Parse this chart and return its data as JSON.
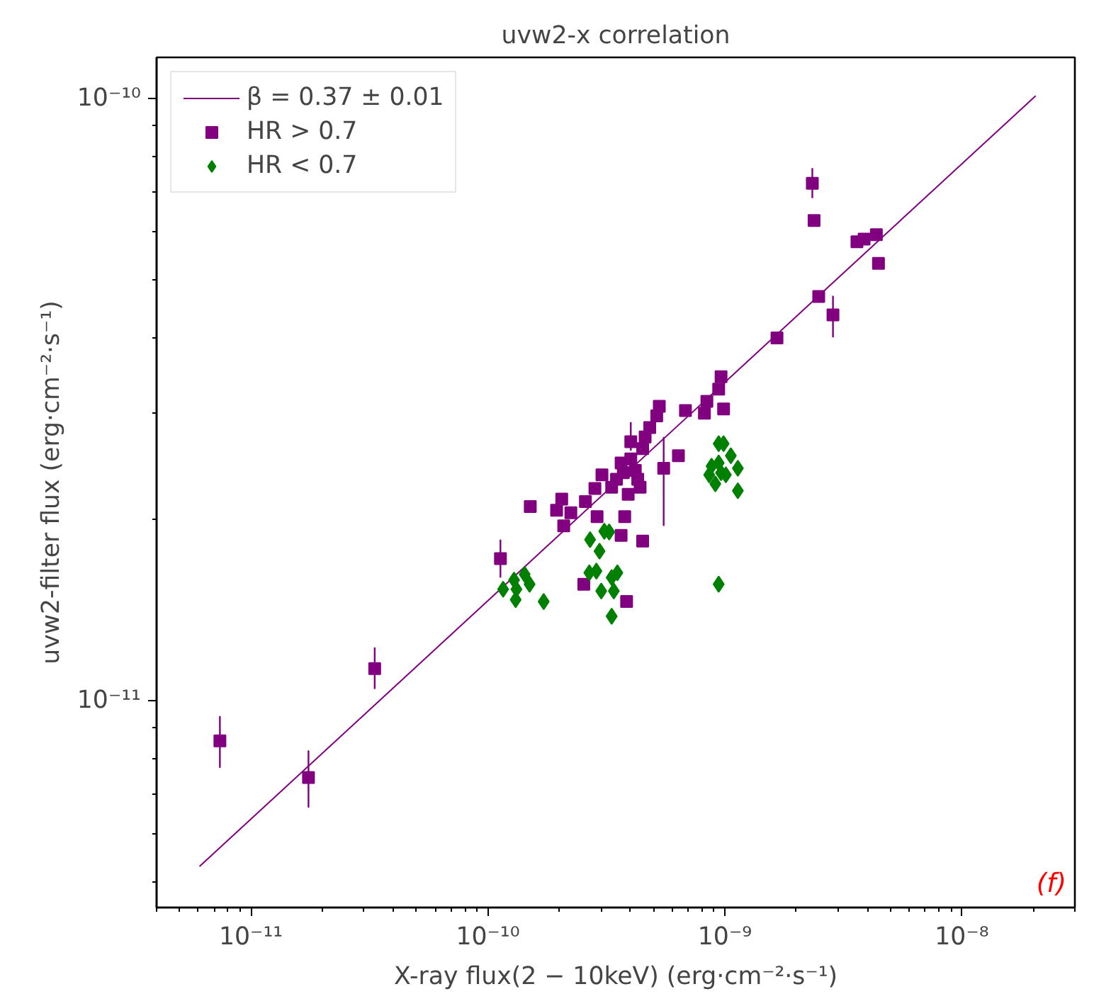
{
  "chart_data": {
    "type": "scatter",
    "title": "uvw2-x correlation",
    "xlabel": "X-ray flux(2 − 10keV) (erg·cm⁻²·s⁻¹)",
    "ylabel": "uvw2-filter flux (erg·cm⁻²·s⁻¹)",
    "log": "xy",
    "grid": false,
    "legend": "top left",
    "xlim": [
      4e-12,
      3e-08
    ],
    "ylim": [
      4.53e-12,
      1.17e-10
    ],
    "xticks": [
      {
        "value": 4e-12,
        "label": null
      },
      {
        "value": 5e-12,
        "label": null
      },
      {
        "value": 6e-12,
        "label": null
      },
      {
        "value": 7e-12,
        "label": null
      },
      {
        "value": 8e-12,
        "label": null
      },
      {
        "value": 9e-12,
        "label": null
      },
      {
        "value": 1e-11,
        "label": "10⁻¹¹"
      },
      {
        "value": 2e-11,
        "label": null
      },
      {
        "value": 3e-11,
        "label": null
      },
      {
        "value": 4e-11,
        "label": null
      },
      {
        "value": 5e-11,
        "label": null
      },
      {
        "value": 6e-11,
        "label": null
      },
      {
        "value": 7e-11,
        "label": null
      },
      {
        "value": 8e-11,
        "label": null
      },
      {
        "value": 9e-11,
        "label": null
      },
      {
        "value": 1e-10,
        "label": "10⁻¹⁰"
      },
      {
        "value": 2e-10,
        "label": null
      },
      {
        "value": 3e-10,
        "label": null
      },
      {
        "value": 4e-10,
        "label": null
      },
      {
        "value": 5e-10,
        "label": null
      },
      {
        "value": 6e-10,
        "label": null
      },
      {
        "value": 7e-10,
        "label": null
      },
      {
        "value": 8e-10,
        "label": null
      },
      {
        "value": 9e-10,
        "label": null
      },
      {
        "value": 1e-09,
        "label": "10⁻⁹"
      },
      {
        "value": 2e-09,
        "label": null
      },
      {
        "value": 3e-09,
        "label": null
      },
      {
        "value": 4e-09,
        "label": null
      },
      {
        "value": 5e-09,
        "label": null
      },
      {
        "value": 6e-09,
        "label": null
      },
      {
        "value": 7e-09,
        "label": null
      },
      {
        "value": 8e-09,
        "label": null
      },
      {
        "value": 9e-09,
        "label": null
      },
      {
        "value": 1e-08,
        "label": "10⁻⁸"
      },
      {
        "value": 2e-08,
        "label": null
      },
      {
        "value": 3e-08,
        "label": null
      }
    ],
    "yticks": [
      {
        "value": 5e-12,
        "label": null
      },
      {
        "value": 6e-12,
        "label": null
      },
      {
        "value": 7e-12,
        "label": null
      },
      {
        "value": 8e-12,
        "label": null
      },
      {
        "value": 9e-12,
        "label": null
      },
      {
        "value": 1e-11,
        "label": "10⁻¹¹"
      },
      {
        "value": 2e-11,
        "label": null
      },
      {
        "value": 3e-11,
        "label": null
      },
      {
        "value": 4e-11,
        "label": null
      },
      {
        "value": 5e-11,
        "label": null
      },
      {
        "value": 6e-11,
        "label": null
      },
      {
        "value": 7e-11,
        "label": null
      },
      {
        "value": 8e-11,
        "label": null
      },
      {
        "value": 9e-11,
        "label": null
      },
      {
        "value": 1e-10,
        "label": "10⁻¹⁰"
      }
    ],
    "annotations": [
      "(f)"
    ],
    "series": [
      {
        "name": "β = 0.37 ± 0.01",
        "type": "line",
        "color": "#800080",
        "marker": "none",
        "x": [
          6.07e-12,
          2.05e-08
        ],
        "values": [
          5.3e-12,
          1.01e-10
        ]
      },
      {
        "name": "HR > 0.7",
        "color": "#800080",
        "marker": "square",
        "x": [
          7.4e-12,
          1.75e-11,
          3.33e-11,
          2.34e-09,
          2.38e-09,
          1.66e-09,
          2.49e-09,
          2.86e-09,
          3.61e-09,
          3.87e-09,
          4.36e-09,
          4.45e-09,
          9.64e-10,
          9.42e-10,
          8.4e-10,
          8.2e-10,
          9.88e-10,
          6.82e-10,
          5.29e-10,
          5.16e-10,
          4.82e-10,
          4.61e-10,
          4.01e-10,
          4.5e-10,
          6.37e-10,
          4.01e-10,
          3.65e-10,
          5.52e-10,
          3.73e-10,
          4.19e-10,
          3.03e-10,
          4.29e-10,
          3.49e-10,
          2.83e-10,
          3.33e-10,
          4.39e-10,
          3.91e-10,
          2.58e-10,
          2.05e-10,
          1.95e-10,
          2.24e-10,
          2.89e-10,
          1.51e-10,
          2.09e-10,
          3.78e-10,
          3.65e-10,
          4.5e-10,
          1.13e-10,
          2.54e-10,
          3.85e-10
        ],
        "values": [
          8.57e-12,
          7.45e-12,
          1.13e-11,
          7.23e-11,
          6.27e-11,
          4e-11,
          4.69e-11,
          4.37e-11,
          5.78e-11,
          5.84e-11,
          5.94e-11,
          5.32e-11,
          3.45e-11,
          3.29e-11,
          3.14e-11,
          3e-11,
          3.05e-11,
          3.03e-11,
          3.08e-11,
          2.97e-11,
          2.84e-11,
          2.74e-11,
          2.69e-11,
          2.62e-11,
          2.55e-11,
          2.52e-11,
          2.48e-11,
          2.43e-11,
          2.39e-11,
          2.41e-11,
          2.37e-11,
          2.33e-11,
          2.33e-11,
          2.25e-11,
          2.26e-11,
          2.26e-11,
          2.2e-11,
          2.14e-11,
          2.16e-11,
          2.07e-11,
          2.05e-11,
          2.02e-11,
          2.1e-11,
          1.95e-11,
          2.02e-11,
          1.88e-11,
          1.84e-11,
          1.72e-11,
          1.56e-11,
          1.46e-11
        ],
        "errors": [
          [
            7.73e-12,
            9.42e-12
          ],
          [
            6.64e-12,
            8.26e-12
          ],
          [
            1.045e-11,
            1.225e-11
          ],
          [
            6.83e-11,
            7.66e-11
          ],
          null,
          null,
          null,
          [
            4.01e-11,
            4.7e-11
          ],
          null,
          null,
          null,
          null,
          null,
          null,
          null,
          null,
          null,
          null,
          null,
          null,
          null,
          null,
          [
            2.6e-11,
            2.9e-11
          ],
          null,
          null,
          null,
          null,
          [
            1.95e-11,
            2.74e-11
          ],
          null,
          null,
          null,
          null,
          null,
          null,
          null,
          null,
          null,
          null,
          null,
          null,
          null,
          null,
          null,
          null,
          null,
          null,
          null,
          [
            1.6e-11,
            1.85e-11
          ],
          null,
          null
        ]
      },
      {
        "name": "HR < 0.7",
        "color": "#008000",
        "marker": "diamond",
        "x": [
          1.16e-10,
          1.29e-10,
          1.32e-10,
          1.31e-10,
          1.43e-10,
          1.5e-10,
          1.72e-10,
          2.7e-10,
          3.1e-10,
          3.25e-10,
          2.96e-10,
          2.68e-10,
          2.87e-10,
          3.01e-10,
          3.33e-10,
          3.52e-10,
          3.4e-10,
          3.33e-10,
          9.42e-10,
          9.88e-10,
          1.06e-09,
          8.79e-10,
          9.42e-10,
          1.135e-09,
          8.59e-10,
          1.01e-09,
          9.64e-10,
          9.12e-10,
          1.135e-09,
          9.42e-10
        ],
        "values": [
          1.53e-11,
          1.585e-11,
          1.53e-11,
          1.47e-11,
          1.62e-11,
          1.56e-11,
          1.46e-11,
          1.85e-11,
          1.91e-11,
          1.905e-11,
          1.77e-11,
          1.63e-11,
          1.64e-11,
          1.52e-11,
          1.6e-11,
          1.63e-11,
          1.52e-11,
          1.38e-11,
          2.67e-11,
          2.67e-11,
          2.55e-11,
          2.45e-11,
          2.48e-11,
          2.43e-11,
          2.37e-11,
          2.37e-11,
          2.39e-11,
          2.29e-11,
          2.23e-11,
          1.56e-11
        ]
      }
    ]
  }
}
